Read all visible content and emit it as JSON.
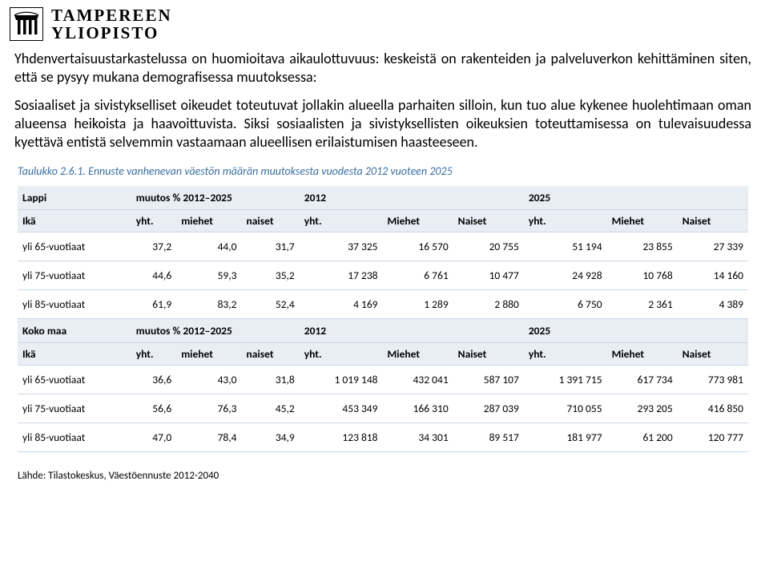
{
  "logo": {
    "line1": "TAMPEREEN",
    "line2": "YLIOPISTO"
  },
  "intro": {
    "p1_a": "Yhdenvertaisuustarkastelussa on huomioitava aikaulottuvuus: keskeistä on rakenteiden ja palveluverkon kehittäminen siten, että se pysyy mukana demografisessa muutoksessa:",
    "p2_a": "Sosiaaliset ja sivistykselliset oikeudet toteutuvat jollakin alueella parhaiten silloin, kun tuo alue kykenee huolehtimaan oman alueensa heikoista ja haavoittuvista. Siksi sosiaalisten ja sivistyksellisten oikeuksien toteuttamisessa on tulevaisuudessa kyettävä entistä selvemmin vastaamaan alueellisen erilaistumisen haasteeseen."
  },
  "caption": "Taulukko 2.6.1. Ennuste vanhenevan väestön määrän muutoksesta vuodesta 2012 vuoteen 2025",
  "table": {
    "region1_label": "Lappi",
    "region2_label": "Koko maa",
    "change_label": "muutos % 2012–2025",
    "year1": "2012",
    "year2": "2025",
    "age_label": "Ikä",
    "cols_change": [
      "yht.",
      "miehet",
      "naiset"
    ],
    "cols_year": [
      "yht.",
      "Miehet",
      "Naiset"
    ],
    "rows1": [
      {
        "label": "yli 65-vuotiaat",
        "c": [
          "37,2",
          "44,0",
          "31,7"
        ],
        "y1": [
          "37 325",
          "16 570",
          "20 755"
        ],
        "y2": [
          "51 194",
          "23 855",
          "27 339"
        ]
      },
      {
        "label": "yli 75-vuotiaat",
        "c": [
          "44,6",
          "59,3",
          "35,2"
        ],
        "y1": [
          "17 238",
          "6 761",
          "10 477"
        ],
        "y2": [
          "24 928",
          "10 768",
          "14 160"
        ]
      },
      {
        "label": "yli 85-vuotiaat",
        "c": [
          "61,9",
          "83,2",
          "52,4"
        ],
        "y1": [
          "4 169",
          "1 289",
          "2 880"
        ],
        "y2": [
          "6 750",
          "2 361",
          "4 389"
        ]
      }
    ],
    "rows2": [
      {
        "label": "yli 65-vuotiaat",
        "c": [
          "36,6",
          "43,0",
          "31,8"
        ],
        "y1": [
          "1 019 148",
          "432 041",
          "587 107"
        ],
        "y2": [
          "1 391 715",
          "617 734",
          "773 981"
        ]
      },
      {
        "label": "yli 75-vuotiaat",
        "c": [
          "56,6",
          "76,3",
          "45,2"
        ],
        "y1": [
          "453 349",
          "166 310",
          "287 039"
        ],
        "y2": [
          "710 055",
          "293 205",
          "416 850"
        ]
      },
      {
        "label": "yli 85-vuotiaat",
        "c": [
          "47,0",
          "78,4",
          "34,9"
        ],
        "y1": [
          "123 818",
          "34 301",
          "89 517"
        ],
        "y2": [
          "181 977",
          "61 200",
          "120 777"
        ]
      }
    ]
  },
  "source": "Lähde: Tilastokeskus, Väestöennuste 2012-2040",
  "colors": {
    "caption_color": "#3b6fa0",
    "row_border": "#c9d6e4",
    "header_bg": "#e9eef5"
  }
}
